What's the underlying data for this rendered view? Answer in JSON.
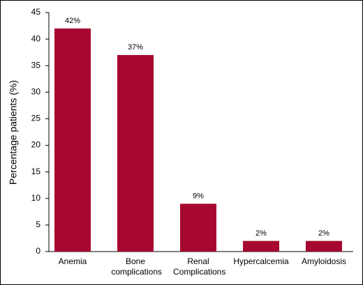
{
  "chart_data": {
    "type": "bar",
    "y_label": "Percentage patients (%)",
    "categories": [
      "Anemia",
      "Bone complications",
      "Renal Complications",
      "Hypercalcemia",
      "Amyloidosis"
    ],
    "values": [
      42,
      37,
      9,
      2,
      2
    ],
    "value_labels": [
      "42%",
      "37%",
      "9%",
      "2%",
      "2%"
    ],
    "color": "#a6082f",
    "ylim": [
      0,
      45
    ],
    "yticks": [
      0,
      5,
      10,
      15,
      20,
      25,
      30,
      35,
      40,
      45
    ],
    "grid": false
  }
}
